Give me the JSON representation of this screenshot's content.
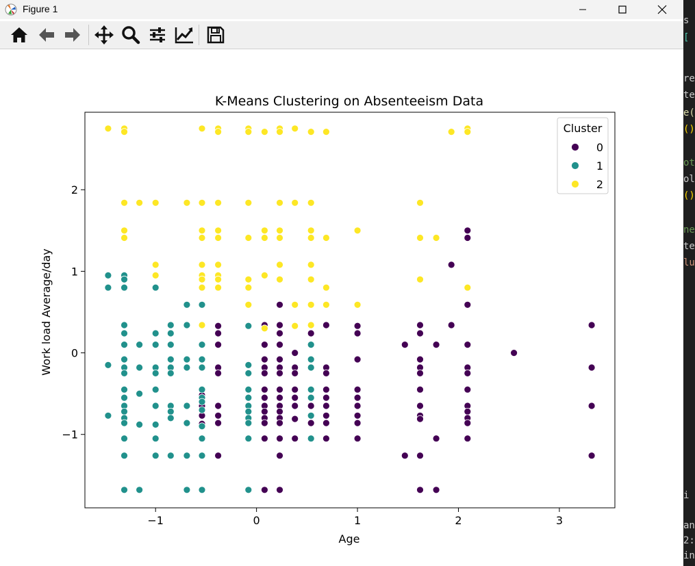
{
  "window": {
    "title": "Figure 1"
  },
  "toolbar": {
    "buttons": [
      {
        "name": "home-icon"
      },
      {
        "name": "back-icon"
      },
      {
        "name": "forward-icon"
      },
      {
        "name": "pan-icon"
      },
      {
        "name": "zoom-icon"
      },
      {
        "name": "configure-subplots-icon"
      },
      {
        "name": "edit-axis-icon"
      },
      {
        "name": "save-icon"
      }
    ]
  },
  "colors": {
    "cluster0": "#440154",
    "cluster1": "#21918c",
    "cluster2": "#fde725"
  },
  "chart_data": {
    "type": "scatter",
    "title": "K-Means Clustering on Absenteeism Data",
    "xlabel": "Age",
    "ylabel": "Work load Average/day",
    "xlim": [
      -1.7,
      3.55
    ],
    "ylim": [
      -1.9,
      2.95
    ],
    "xticks": [
      -1,
      0,
      1,
      2,
      3
    ],
    "xtick_labels": [
      "−1",
      "0",
      "1",
      "2",
      "3"
    ],
    "yticks": [
      -1,
      0,
      1,
      2
    ],
    "ytick_labels": [
      "−1",
      "0",
      "1",
      "2"
    ],
    "grid": false,
    "legend": {
      "title": "Cluster",
      "position": "top-right"
    },
    "series": [
      {
        "name": "0",
        "color": "#440154",
        "points": [
          [
            -0.38,
            0.33
          ],
          [
            -0.38,
            0.24
          ],
          [
            -0.38,
            0.1
          ],
          [
            -0.38,
            -0.18
          ],
          [
            -0.38,
            -0.25
          ],
          [
            -0.38,
            -0.65
          ],
          [
            -0.38,
            -0.77
          ],
          [
            -0.38,
            -0.86
          ],
          [
            -0.38,
            -1.26
          ],
          [
            -0.54,
            -0.52
          ],
          [
            -0.54,
            -0.65
          ],
          [
            -0.54,
            -0.77
          ],
          [
            -0.54,
            -0.87
          ],
          [
            0.08,
            0.34
          ],
          [
            0.08,
            0.1
          ],
          [
            0.08,
            -0.08
          ],
          [
            0.08,
            -0.18
          ],
          [
            0.08,
            -0.25
          ],
          [
            0.08,
            -0.45
          ],
          [
            0.08,
            -0.55
          ],
          [
            0.08,
            -0.65
          ],
          [
            0.08,
            -0.72
          ],
          [
            0.08,
            -0.8
          ],
          [
            0.08,
            -0.86
          ],
          [
            0.08,
            -1.05
          ],
          [
            0.08,
            -1.68
          ],
          [
            0.23,
            0.59
          ],
          [
            0.23,
            0.34
          ],
          [
            0.23,
            0.24
          ],
          [
            0.23,
            0.1
          ],
          [
            0.23,
            -0.08
          ],
          [
            0.23,
            -0.18
          ],
          [
            0.23,
            -0.25
          ],
          [
            0.23,
            -0.45
          ],
          [
            0.23,
            -0.55
          ],
          [
            0.23,
            -0.65
          ],
          [
            0.23,
            -0.72
          ],
          [
            0.23,
            -0.8
          ],
          [
            0.23,
            -0.86
          ],
          [
            0.23,
            -1.05
          ],
          [
            0.23,
            -1.26
          ],
          [
            0.23,
            -1.68
          ],
          [
            0.38,
            0.0
          ],
          [
            0.38,
            -0.18
          ],
          [
            0.38,
            -0.25
          ],
          [
            0.38,
            -0.45
          ],
          [
            0.38,
            -0.55
          ],
          [
            0.38,
            -0.65
          ],
          [
            0.38,
            -0.81
          ],
          [
            0.38,
            -1.05
          ],
          [
            0.54,
            0.24
          ],
          [
            0.54,
            0.1
          ],
          [
            0.54,
            -0.18
          ],
          [
            0.54,
            -0.65
          ],
          [
            0.54,
            -0.86
          ],
          [
            0.69,
            0.34
          ],
          [
            0.69,
            -0.18
          ],
          [
            0.69,
            -0.25
          ],
          [
            0.69,
            -0.45
          ],
          [
            0.69,
            -0.55
          ],
          [
            0.69,
            -0.65
          ],
          [
            0.69,
            -0.77
          ],
          [
            0.69,
            -0.86
          ],
          [
            0.69,
            -1.05
          ],
          [
            1.0,
            0.33
          ],
          [
            1.0,
            0.24
          ],
          [
            1.0,
            -0.08
          ],
          [
            1.0,
            -0.45
          ],
          [
            1.0,
            -0.55
          ],
          [
            1.0,
            -0.65
          ],
          [
            1.0,
            -0.77
          ],
          [
            1.0,
            -0.86
          ],
          [
            1.0,
            -1.05
          ],
          [
            1.47,
            0.1
          ],
          [
            1.47,
            -1.26
          ],
          [
            1.62,
            0.34
          ],
          [
            1.62,
            0.24
          ],
          [
            1.62,
            -0.08
          ],
          [
            1.62,
            -0.18
          ],
          [
            1.62,
            -0.25
          ],
          [
            1.62,
            -0.45
          ],
          [
            1.62,
            -0.65
          ],
          [
            1.62,
            -0.77
          ],
          [
            1.62,
            -0.81
          ],
          [
            1.62,
            -1.26
          ],
          [
            1.62,
            -1.68
          ],
          [
            1.78,
            0.1
          ],
          [
            1.78,
            -1.05
          ],
          [
            1.78,
            -1.68
          ],
          [
            1.93,
            1.08
          ],
          [
            1.93,
            0.34
          ],
          [
            2.09,
            1.5
          ],
          [
            2.09,
            1.41
          ],
          [
            2.09,
            0.59
          ],
          [
            2.09,
            0.1
          ],
          [
            2.09,
            -0.18
          ],
          [
            2.09,
            -0.25
          ],
          [
            2.09,
            -0.45
          ],
          [
            2.09,
            -0.65
          ],
          [
            2.09,
            -0.72
          ],
          [
            2.09,
            -0.8
          ],
          [
            2.09,
            -0.86
          ],
          [
            2.09,
            -1.05
          ],
          [
            2.55,
            0.0
          ],
          [
            3.32,
            0.34
          ],
          [
            3.32,
            -0.18
          ],
          [
            3.32,
            -0.65
          ],
          [
            3.32,
            -1.26
          ]
        ]
      },
      {
        "name": "1",
        "color": "#21918c",
        "points": [
          [
            -1.47,
            0.95
          ],
          [
            -1.47,
            0.8
          ],
          [
            -1.47,
            -0.15
          ],
          [
            -1.47,
            -0.77
          ],
          [
            -1.31,
            0.95
          ],
          [
            -1.31,
            0.9
          ],
          [
            -1.31,
            0.8
          ],
          [
            -1.31,
            0.34
          ],
          [
            -1.31,
            0.24
          ],
          [
            -1.31,
            0.1
          ],
          [
            -1.31,
            -0.08
          ],
          [
            -1.31,
            -0.18
          ],
          [
            -1.31,
            -0.25
          ],
          [
            -1.31,
            -0.45
          ],
          [
            -1.31,
            -0.55
          ],
          [
            -1.31,
            -0.65
          ],
          [
            -1.31,
            -0.72
          ],
          [
            -1.31,
            -0.8
          ],
          [
            -1.31,
            -0.86
          ],
          [
            -1.31,
            -1.05
          ],
          [
            -1.31,
            -1.26
          ],
          [
            -1.31,
            -1.68
          ],
          [
            -1.16,
            0.1
          ],
          [
            -1.16,
            -0.18
          ],
          [
            -1.16,
            -0.5
          ],
          [
            -1.16,
            -0.88
          ],
          [
            -1.16,
            -1.68
          ],
          [
            -1.0,
            0.8
          ],
          [
            -1.0,
            0.24
          ],
          [
            -1.0,
            0.1
          ],
          [
            -1.0,
            -0.18
          ],
          [
            -1.0,
            -0.25
          ],
          [
            -1.0,
            -0.45
          ],
          [
            -1.0,
            -0.65
          ],
          [
            -1.0,
            -0.88
          ],
          [
            -1.0,
            -1.05
          ],
          [
            -1.0,
            -1.26
          ],
          [
            -0.85,
            0.34
          ],
          [
            -0.85,
            0.24
          ],
          [
            -0.85,
            0.1
          ],
          [
            -0.85,
            -0.08
          ],
          [
            -0.85,
            -0.18
          ],
          [
            -0.85,
            -0.25
          ],
          [
            -0.85,
            -0.65
          ],
          [
            -0.85,
            -0.72
          ],
          [
            -0.85,
            -0.8
          ],
          [
            -0.85,
            -1.26
          ],
          [
            -0.69,
            0.59
          ],
          [
            -0.69,
            0.34
          ],
          [
            -0.69,
            -0.08
          ],
          [
            -0.69,
            -0.18
          ],
          [
            -0.69,
            -0.65
          ],
          [
            -0.69,
            -0.86
          ],
          [
            -0.69,
            -1.26
          ],
          [
            -0.69,
            -1.68
          ],
          [
            -0.54,
            0.59
          ],
          [
            -0.54,
            0.1
          ],
          [
            -0.54,
            -0.08
          ],
          [
            -0.54,
            -0.18
          ],
          [
            -0.54,
            -0.45
          ],
          [
            -0.54,
            -0.55
          ],
          [
            -0.54,
            -0.6
          ],
          [
            -0.54,
            -0.7
          ],
          [
            -0.54,
            -0.9
          ],
          [
            -0.54,
            -1.05
          ],
          [
            -0.54,
            -1.26
          ],
          [
            -0.54,
            -1.68
          ],
          [
            -0.08,
            0.33
          ],
          [
            -0.08,
            -0.15
          ],
          [
            -0.08,
            -0.25
          ],
          [
            -0.08,
            -0.45
          ],
          [
            -0.08,
            -0.55
          ],
          [
            -0.08,
            -0.65
          ],
          [
            -0.08,
            -0.72
          ],
          [
            -0.08,
            -0.8
          ],
          [
            -0.08,
            -0.86
          ],
          [
            -0.08,
            -1.05
          ],
          [
            -0.08,
            -1.68
          ],
          [
            0.54,
            0.34
          ],
          [
            0.54,
            0.1
          ],
          [
            0.54,
            -0.08
          ],
          [
            0.54,
            -0.18
          ],
          [
            0.54,
            -0.45
          ],
          [
            0.54,
            -0.55
          ],
          [
            0.54,
            -0.77
          ],
          [
            0.54,
            -1.05
          ]
        ]
      },
      {
        "name": "2",
        "color": "#fde725",
        "points": [
          [
            -1.47,
            2.75
          ],
          [
            -1.31,
            2.75
          ],
          [
            -1.31,
            2.71
          ],
          [
            -1.31,
            1.84
          ],
          [
            -1.31,
            1.5
          ],
          [
            -1.31,
            1.41
          ],
          [
            -1.16,
            1.84
          ],
          [
            -1.0,
            1.84
          ],
          [
            -1.0,
            1.08
          ],
          [
            -1.0,
            0.95
          ],
          [
            -0.69,
            1.84
          ],
          [
            -0.54,
            2.75
          ],
          [
            -0.54,
            1.84
          ],
          [
            -0.54,
            1.5
          ],
          [
            -0.54,
            1.41
          ],
          [
            -0.54,
            1.08
          ],
          [
            -0.54,
            0.95
          ],
          [
            -0.54,
            0.9
          ],
          [
            -0.54,
            0.8
          ],
          [
            -0.54,
            0.34
          ],
          [
            -0.38,
            2.75
          ],
          [
            -0.38,
            2.71
          ],
          [
            -0.38,
            1.84
          ],
          [
            -0.38,
            1.5
          ],
          [
            -0.38,
            1.41
          ],
          [
            -0.38,
            1.08
          ],
          [
            -0.38,
            0.95
          ],
          [
            -0.38,
            0.9
          ],
          [
            -0.38,
            0.8
          ],
          [
            -0.08,
            2.75
          ],
          [
            -0.08,
            2.71
          ],
          [
            -0.08,
            1.84
          ],
          [
            -0.08,
            1.41
          ],
          [
            -0.08,
            0.9
          ],
          [
            -0.08,
            0.8
          ],
          [
            -0.08,
            0.59
          ],
          [
            0.08,
            2.71
          ],
          [
            0.08,
            1.5
          ],
          [
            0.08,
            1.41
          ],
          [
            0.08,
            0.95
          ],
          [
            0.08,
            0.3
          ],
          [
            0.23,
            2.75
          ],
          [
            0.23,
            2.71
          ],
          [
            0.23,
            1.84
          ],
          [
            0.23,
            1.5
          ],
          [
            0.23,
            1.41
          ],
          [
            0.23,
            1.08
          ],
          [
            0.23,
            0.9
          ],
          [
            0.38,
            2.75
          ],
          [
            0.38,
            1.84
          ],
          [
            0.38,
            0.59
          ],
          [
            0.38,
            0.33
          ],
          [
            0.54,
            2.71
          ],
          [
            0.54,
            1.84
          ],
          [
            0.54,
            1.5
          ],
          [
            0.54,
            1.41
          ],
          [
            0.54,
            1.08
          ],
          [
            0.54,
            0.9
          ],
          [
            0.54,
            0.59
          ],
          [
            0.54,
            0.34
          ],
          [
            0.69,
            2.71
          ],
          [
            0.69,
            1.41
          ],
          [
            0.69,
            0.8
          ],
          [
            0.69,
            0.59
          ],
          [
            1.0,
            1.5
          ],
          [
            1.0,
            0.59
          ],
          [
            1.62,
            1.84
          ],
          [
            1.62,
            1.41
          ],
          [
            1.62,
            0.9
          ],
          [
            1.78,
            1.41
          ],
          [
            1.93,
            2.71
          ],
          [
            2.09,
            2.75
          ],
          [
            2.09,
            2.71
          ],
          [
            2.09,
            0.8
          ]
        ]
      }
    ]
  },
  "editor_fragments": [
    {
      "text": "s",
      "color": "#cccccc"
    },
    {
      "text": "[",
      "color": "#4ec9b0"
    },
    {
      "text": "re",
      "color": "#cccccc"
    },
    {
      "text": "te",
      "color": "#cccccc"
    },
    {
      "text": "e(",
      "color": "#dcdcaa"
    },
    {
      "text": "()",
      "color": "#ffd700"
    },
    {
      "text": "ot",
      "color": "#6a9955"
    },
    {
      "text": "ol",
      "color": "#cccccc"
    },
    {
      "text": "()",
      "color": "#ffd700"
    },
    {
      "text": "ne",
      "color": "#6a9955"
    },
    {
      "text": "te",
      "color": "#cccccc"
    },
    {
      "text": "lu",
      "color": "#ce9178"
    },
    {
      "text": "i",
      "color": "#cccccc"
    },
    {
      "text": "an",
      "color": "#cccccc"
    },
    {
      "text": "2:",
      "color": "#cccccc"
    },
    {
      "text": "in",
      "color": "#cccccc"
    }
  ]
}
